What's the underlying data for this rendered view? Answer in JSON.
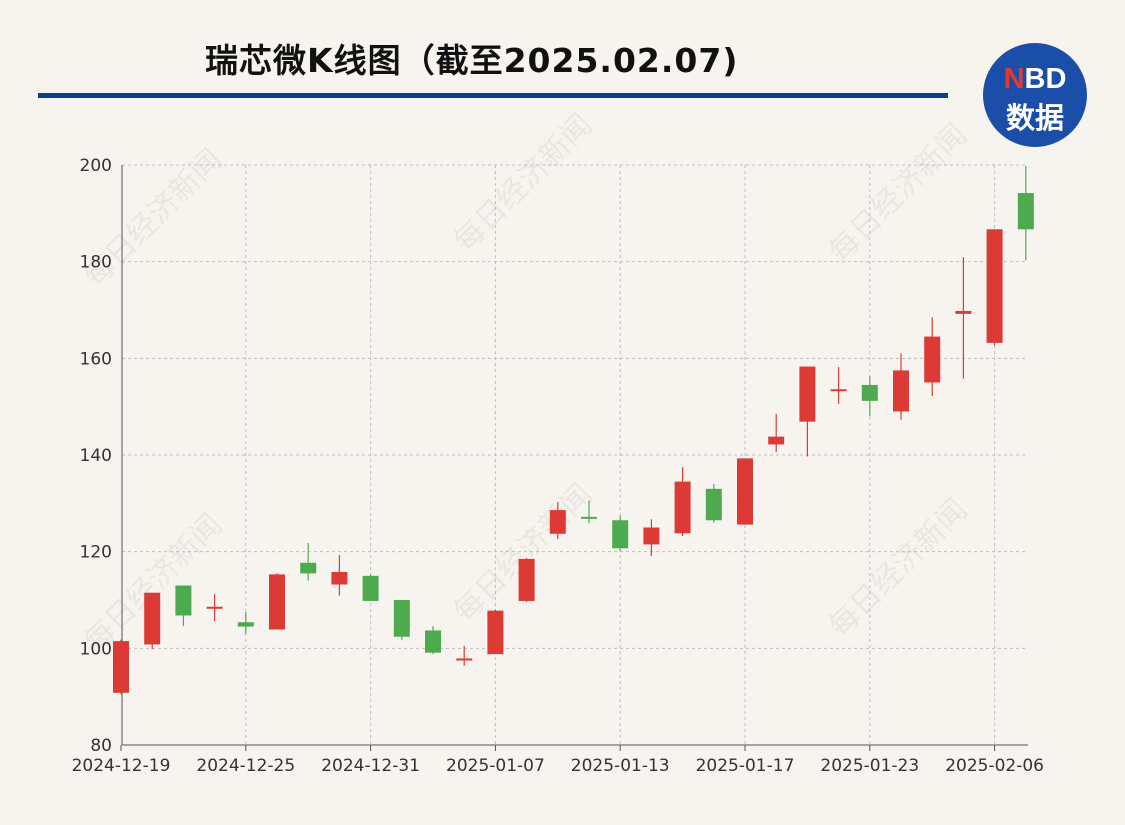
{
  "header": {
    "title": "瑞芯微K线图（截至2025.02.07)",
    "logo_top": "NBD",
    "logo_bottom": "数据",
    "watermark": "每日经济新闻"
  },
  "colors": {
    "up": "#dc3b35",
    "down": "#4eaa4e",
    "rule": "#0d3e8c",
    "logo": "#1a4ea8"
  },
  "chart_data": {
    "type": "candlestick",
    "title": "瑞芯微K线图（截至2025.02.07)",
    "ylim": [
      80,
      200
    ],
    "yticks": [
      80,
      100,
      120,
      140,
      160,
      180,
      200
    ],
    "xtick_labels": [
      "2024-12-19",
      "2024-12-25",
      "2024-12-31",
      "2025-01-07",
      "2025-01-13",
      "2025-01-17",
      "2025-01-23",
      "2025-02-06"
    ],
    "grid": true,
    "candles": [
      {
        "date": "2024-12-19",
        "open": 90.8,
        "close": 101.5,
        "high": 101.8,
        "low": 90.5
      },
      {
        "date": "2024-12-20",
        "open": 100.8,
        "close": 111.5,
        "high": 111.5,
        "low": 99.8
      },
      {
        "date": "2024-12-23",
        "open": 113.0,
        "close": 106.8,
        "high": 113.0,
        "low": 104.6
      },
      {
        "date": "2024-12-24",
        "open": 108.6,
        "close": 108.6,
        "high": 111.2,
        "low": 105.6
      },
      {
        "date": "2024-12-25",
        "open": 105.4,
        "close": 104.5,
        "high": 107.5,
        "low": 103.0
      },
      {
        "date": "2024-12-26",
        "open": 103.9,
        "close": 115.3,
        "high": 115.5,
        "low": 103.9
      },
      {
        "date": "2024-12-27",
        "open": 117.7,
        "close": 115.5,
        "high": 121.8,
        "low": 114.0
      },
      {
        "date": "2024-12-30",
        "open": 113.2,
        "close": 115.8,
        "high": 119.3,
        "low": 110.9
      },
      {
        "date": "2024-12-31",
        "open": 115.0,
        "close": 109.8,
        "high": 115.3,
        "low": 109.8
      },
      {
        "date": "2025-01-02",
        "open": 110.0,
        "close": 102.4,
        "high": 110.0,
        "low": 101.7
      },
      {
        "date": "2025-01-03",
        "open": 103.7,
        "close": 99.1,
        "high": 104.6,
        "low": 98.8
      },
      {
        "date": "2025-01-06",
        "open": 97.9,
        "close": 97.9,
        "high": 100.5,
        "low": 96.4
      },
      {
        "date": "2025-01-07",
        "open": 98.8,
        "close": 107.8,
        "high": 108.0,
        "low": 98.8
      },
      {
        "date": "2025-01-08",
        "open": 109.8,
        "close": 118.5,
        "high": 118.7,
        "low": 109.6
      },
      {
        "date": "2025-01-09",
        "open": 123.7,
        "close": 128.6,
        "high": 130.3,
        "low": 122.6
      },
      {
        "date": "2025-01-10",
        "open": 127.2,
        "close": 126.8,
        "high": 130.6,
        "low": 125.9
      },
      {
        "date": "2025-01-13",
        "open": 126.5,
        "close": 120.7,
        "high": 127.5,
        "low": 120.2
      },
      {
        "date": "2025-01-14",
        "open": 121.5,
        "close": 125.0,
        "high": 126.7,
        "low": 119.1
      },
      {
        "date": "2025-01-15",
        "open": 123.8,
        "close": 134.5,
        "high": 137.5,
        "low": 123.2
      },
      {
        "date": "2025-01-16",
        "open": 133.0,
        "close": 126.5,
        "high": 134.0,
        "low": 126.0
      },
      {
        "date": "2025-01-17",
        "open": 125.6,
        "close": 139.3,
        "high": 139.3,
        "low": 125.6
      },
      {
        "date": "2025-01-20",
        "open": 142.2,
        "close": 143.8,
        "high": 148.5,
        "low": 140.6
      },
      {
        "date": "2025-01-21",
        "open": 146.9,
        "close": 158.3,
        "high": 158.3,
        "low": 139.7
      },
      {
        "date": "2025-01-22",
        "open": 153.5,
        "close": 153.6,
        "high": 158.2,
        "low": 150.6
      },
      {
        "date": "2025-01-23",
        "open": 154.5,
        "close": 151.2,
        "high": 156.3,
        "low": 148.0
      },
      {
        "date": "2025-01-24",
        "open": 149.0,
        "close": 157.5,
        "high": 161.0,
        "low": 147.3
      },
      {
        "date": "2025-01-27",
        "open": 155.0,
        "close": 164.5,
        "high": 168.5,
        "low": 152.2
      },
      {
        "date": "2025-02-05",
        "open": 169.2,
        "close": 169.8,
        "high": 180.9,
        "low": 155.8
      },
      {
        "date": "2025-02-06",
        "open": 163.2,
        "close": 186.7,
        "high": 186.7,
        "low": 162.7
      },
      {
        "date": "2025-02-07",
        "open": 194.2,
        "close": 186.7,
        "high": 199.8,
        "low": 180.3
      }
    ]
  }
}
